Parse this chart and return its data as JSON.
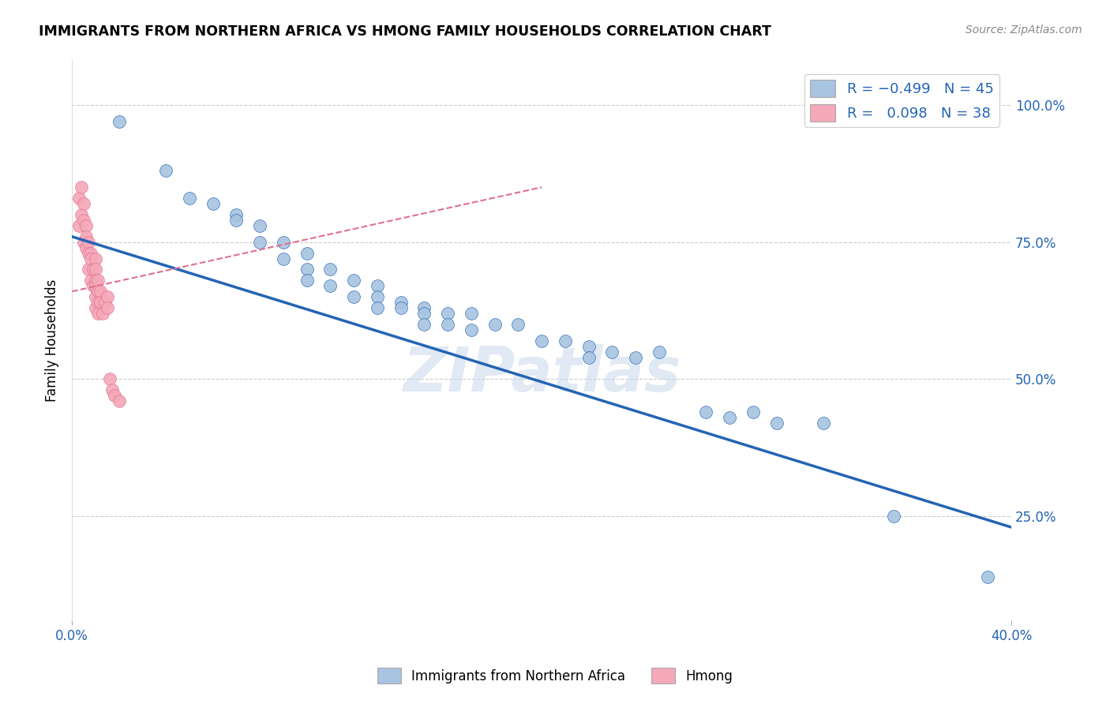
{
  "title": "IMMIGRANTS FROM NORTHERN AFRICA VS HMONG FAMILY HOUSEHOLDS CORRELATION CHART",
  "source": "Source: ZipAtlas.com",
  "ylabel": "Family Households",
  "ytick_labels": [
    "25.0%",
    "50.0%",
    "75.0%",
    "100.0%"
  ],
  "ytick_values": [
    0.25,
    0.5,
    0.75,
    1.0
  ],
  "legend_label1": "Immigrants from Northern Africa",
  "legend_label2": "Hmong",
  "blue_color": "#a8c4e0",
  "pink_color": "#f4a8b8",
  "blue_line_color": "#2464b4",
  "pink_line_color": "#e07090",
  "watermark": "ZIPatlas",
  "xmin": 0.0,
  "xmax": 0.4,
  "ymin": 0.06,
  "ymax": 1.08,
  "blue_scatter_x": [
    0.02,
    0.04,
    0.05,
    0.06,
    0.07,
    0.07,
    0.08,
    0.08,
    0.09,
    0.09,
    0.1,
    0.1,
    0.1,
    0.11,
    0.11,
    0.12,
    0.12,
    0.13,
    0.13,
    0.13,
    0.14,
    0.14,
    0.15,
    0.15,
    0.15,
    0.16,
    0.16,
    0.17,
    0.17,
    0.18,
    0.19,
    0.2,
    0.21,
    0.22,
    0.22,
    0.23,
    0.24,
    0.25,
    0.27,
    0.28,
    0.29,
    0.3,
    0.32,
    0.35,
    0.39
  ],
  "blue_scatter_y": [
    0.97,
    0.88,
    0.83,
    0.82,
    0.8,
    0.79,
    0.78,
    0.75,
    0.75,
    0.72,
    0.73,
    0.7,
    0.68,
    0.7,
    0.67,
    0.68,
    0.65,
    0.67,
    0.65,
    0.63,
    0.64,
    0.63,
    0.63,
    0.62,
    0.6,
    0.62,
    0.6,
    0.62,
    0.59,
    0.6,
    0.6,
    0.57,
    0.57,
    0.56,
    0.54,
    0.55,
    0.54,
    0.55,
    0.44,
    0.43,
    0.44,
    0.42,
    0.42,
    0.25,
    0.14
  ],
  "pink_scatter_x": [
    0.003,
    0.003,
    0.004,
    0.004,
    0.005,
    0.005,
    0.005,
    0.006,
    0.006,
    0.006,
    0.007,
    0.007,
    0.007,
    0.008,
    0.008,
    0.008,
    0.009,
    0.009,
    0.01,
    0.01,
    0.01,
    0.01,
    0.01,
    0.01,
    0.011,
    0.011,
    0.011,
    0.011,
    0.012,
    0.012,
    0.013,
    0.014,
    0.015,
    0.015,
    0.016,
    0.017,
    0.018,
    0.02
  ],
  "pink_scatter_y": [
    0.83,
    0.78,
    0.85,
    0.8,
    0.82,
    0.79,
    0.75,
    0.78,
    0.76,
    0.74,
    0.75,
    0.73,
    0.7,
    0.73,
    0.72,
    0.68,
    0.7,
    0.67,
    0.72,
    0.7,
    0.68,
    0.67,
    0.65,
    0.63,
    0.68,
    0.66,
    0.64,
    0.62,
    0.66,
    0.64,
    0.62,
    0.64,
    0.65,
    0.63,
    0.5,
    0.48,
    0.47,
    0.46
  ],
  "blue_trend_x": [
    0.0,
    0.4
  ],
  "blue_trend_y": [
    0.76,
    0.23
  ],
  "pink_trend_x": [
    0.0,
    0.2
  ],
  "pink_trend_y": [
    0.66,
    0.85
  ]
}
